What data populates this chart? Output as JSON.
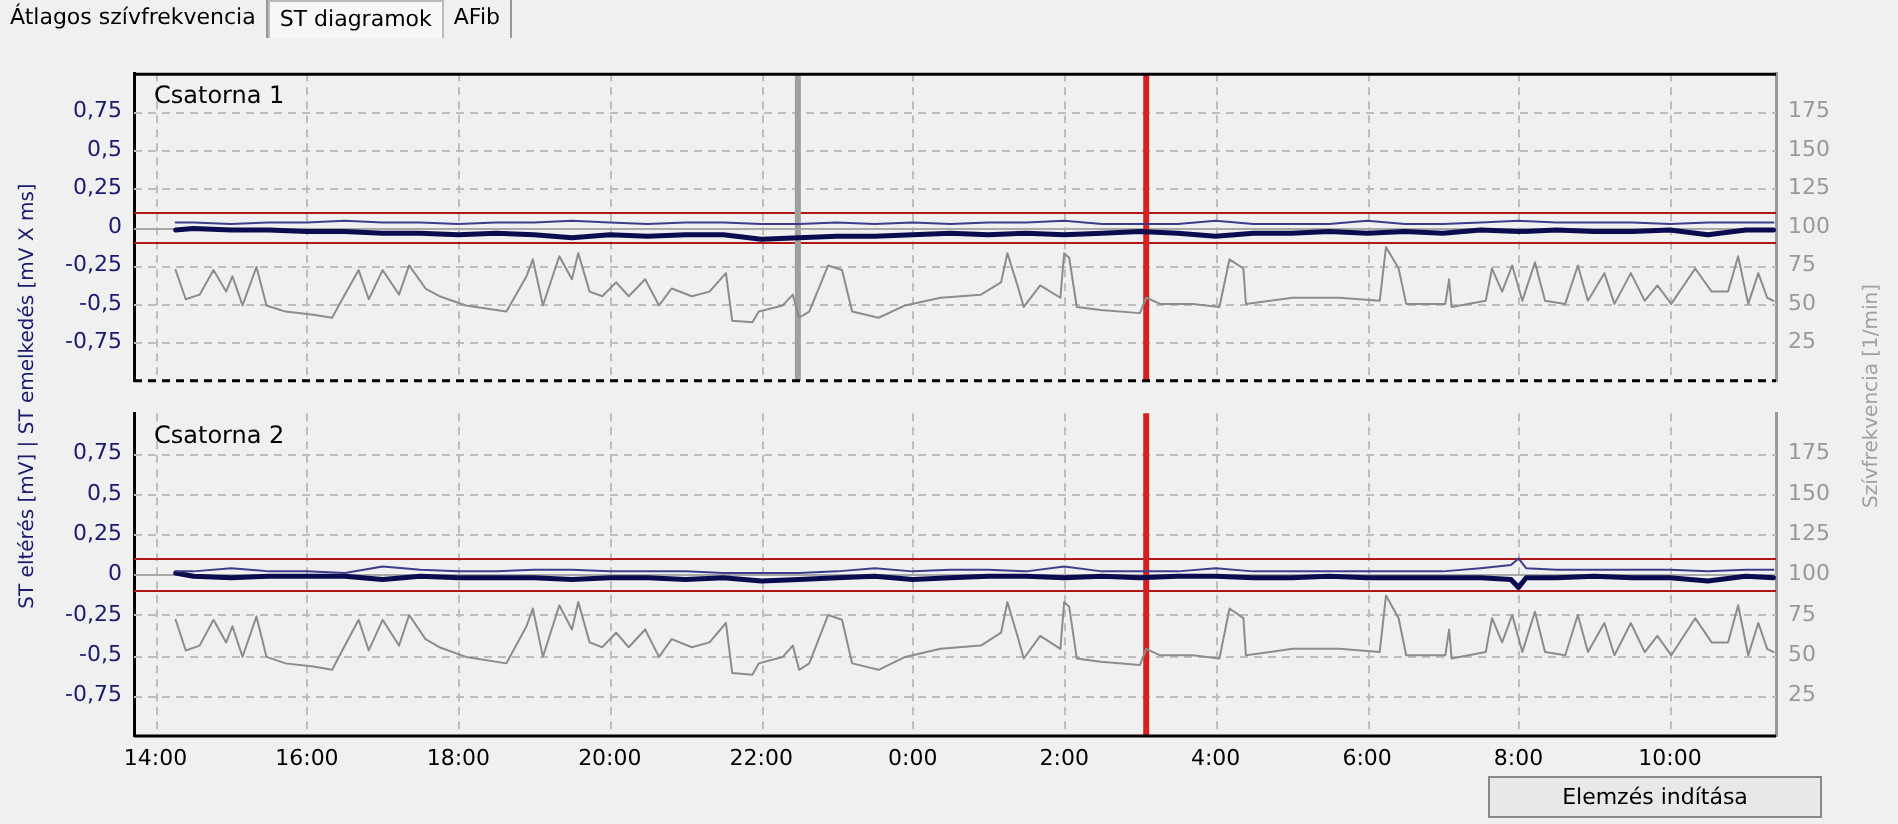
{
  "chart_data": [
    {
      "type": "line",
      "title": "Csatorna 1",
      "ylabel": "ST eltérés [mV] | ST emelkedés [mV X ms]",
      "y2label": "Szívfrekvencia [1/min]",
      "annotations": [
        "Átlagos szívfrekvencia",
        "ST diagramok",
        "AFib"
      ],
      "xlim": [
        "2000-01-01T13:43",
        "2000-01-02T11:24"
      ],
      "xticks": [
        {
          "value": "2000-01-01T14:00",
          "label": null
        },
        {
          "value": "2000-01-01T16:00",
          "label": null
        },
        {
          "value": "2000-01-01T18:00",
          "label": null
        },
        {
          "value": "2000-01-01T20:00",
          "label": null
        },
        {
          "value": "2000-01-01T22:00",
          "label": null
        },
        {
          "value": "2000-01-02T00:00",
          "label": null
        },
        {
          "value": "2000-01-02T02:00",
          "label": null
        },
        {
          "value": "2000-01-02T04:00",
          "label": null
        },
        {
          "value": "2000-01-02T06:00",
          "label": null
        },
        {
          "value": "2000-01-02T08:00",
          "label": null
        },
        {
          "value": "2000-01-02T10:00",
          "label": null
        }
      ],
      "ylim": [
        -1,
        1
      ],
      "yticks": [
        {
          "value": -0.75,
          "label": "-0,75"
        },
        {
          "value": -0.5,
          "label": "-0,5"
        },
        {
          "value": -0.25,
          "label": "-0,25"
        },
        0,
        {
          "value": 0.25,
          "label": "0,25"
        },
        {
          "value": 0.5,
          "label": "0,5"
        },
        {
          "value": 0.75,
          "label": "0,75"
        }
      ],
      "y2lim": [
        0,
        200
      ],
      "y2ticks": [
        25,
        50,
        75,
        100,
        125,
        150,
        175
      ],
      "grid": true,
      "legend": false,
      "tick_labels": "y",
      "marker": "none",
      "line_style": "solid",
      "ref_lines": [
        {
          "axis": "y",
          "value": 0,
          "color": "#a8a8a8"
        },
        {
          "axis": "y",
          "value": 0.1,
          "color": "#b01818"
        },
        {
          "axis": "y",
          "value": -0.1,
          "color": "#b01818"
        },
        {
          "axis": "x",
          "value": "2000-01-02T03:05",
          "color": "#d42020"
        },
        {
          "axis": "x",
          "value": "2000-01-01T22:29",
          "color": "#a0a0a0"
        }
      ],
      "series": [
        {
          "color": "#0b0b4f",
          "x": [
            "2000-01-01T14:16",
            "2000-01-01T14:30",
            "2000-01-01T15:00",
            "2000-01-01T15:30",
            "2000-01-01T16:00",
            "2000-01-01T16:30",
            "2000-01-01T17:00",
            "2000-01-01T17:30",
            "2000-01-01T18:00",
            "2000-01-01T18:30",
            "2000-01-01T19:00",
            "2000-01-01T19:30",
            "2000-01-01T20:00",
            "2000-01-01T20:30",
            "2000-01-01T21:00",
            "2000-01-01T21:30",
            "2000-01-01T22:00",
            "2000-01-01T22:30",
            "2000-01-01T23:00",
            "2000-01-01T23:30",
            "2000-01-02T00:00",
            "2000-01-02T00:30",
            "2000-01-02T01:00",
            "2000-01-02T01:30",
            "2000-01-02T02:00",
            "2000-01-02T02:30",
            "2000-01-02T03:00",
            "2000-01-02T03:30",
            "2000-01-02T04:00",
            "2000-01-02T04:30",
            "2000-01-02T05:00",
            "2000-01-02T05:30",
            "2000-01-02T06:00",
            "2000-01-02T06:30",
            "2000-01-02T07:00",
            "2000-01-02T07:30",
            "2000-01-02T08:00",
            "2000-01-02T08:30",
            "2000-01-02T09:00",
            "2000-01-02T09:30",
            "2000-01-02T10:00",
            "2000-01-02T10:30",
            "2000-01-02T11:00",
            "2000-01-02T11:22"
          ],
          "values": [
            -0.02,
            -0.01,
            -0.02,
            -0.02,
            -0.03,
            -0.03,
            -0.04,
            -0.04,
            -0.05,
            -0.04,
            -0.05,
            -0.07,
            -0.05,
            -0.06,
            -0.05,
            -0.05,
            -0.08,
            -0.07,
            -0.06,
            -0.06,
            -0.05,
            -0.04,
            -0.05,
            -0.04,
            -0.05,
            -0.04,
            -0.03,
            -0.04,
            -0.06,
            -0.04,
            -0.04,
            -0.03,
            -0.04,
            -0.03,
            -0.04,
            -0.02,
            -0.03,
            -0.02,
            -0.03,
            -0.03,
            -0.02,
            -0.05,
            -0.02,
            -0.02
          ]
        },
        {
          "color": "#3c3c8c",
          "x": [
            "2000-01-01T14:16",
            "2000-01-01T14:30",
            "2000-01-01T15:00",
            "2000-01-01T15:30",
            "2000-01-01T16:00",
            "2000-01-01T16:30",
            "2000-01-01T17:00",
            "2000-01-01T17:30",
            "2000-01-01T18:00",
            "2000-01-01T18:30",
            "2000-01-01T19:00",
            "2000-01-01T19:30",
            "2000-01-01T20:00",
            "2000-01-01T20:30",
            "2000-01-01T21:00",
            "2000-01-01T21:30",
            "2000-01-01T22:00",
            "2000-01-01T22:30",
            "2000-01-01T23:00",
            "2000-01-01T23:30",
            "2000-01-02T00:00",
            "2000-01-02T00:30",
            "2000-01-02T01:00",
            "2000-01-02T01:30",
            "2000-01-02T02:00",
            "2000-01-02T02:30",
            "2000-01-02T03:00",
            "2000-01-02T03:30",
            "2000-01-02T04:00",
            "2000-01-02T04:30",
            "2000-01-02T05:00",
            "2000-01-02T05:30",
            "2000-01-02T06:00",
            "2000-01-02T06:30",
            "2000-01-02T07:00",
            "2000-01-02T07:30",
            "2000-01-02T08:00",
            "2000-01-02T08:30",
            "2000-01-02T09:00",
            "2000-01-02T09:30",
            "2000-01-02T10:00",
            "2000-01-02T10:30",
            "2000-01-02T11:00",
            "2000-01-02T11:22"
          ],
          "values": [
            0.03,
            0.03,
            0.02,
            0.03,
            0.03,
            0.04,
            0.03,
            0.03,
            0.02,
            0.03,
            0.03,
            0.04,
            0.03,
            0.02,
            0.03,
            0.03,
            0.02,
            0.02,
            0.03,
            0.02,
            0.03,
            0.02,
            0.03,
            0.03,
            0.04,
            0.02,
            0.02,
            0.02,
            0.04,
            0.02,
            0.02,
            0.02,
            0.04,
            0.02,
            0.02,
            0.03,
            0.04,
            0.03,
            0.03,
            0.03,
            0.02,
            0.03,
            0.03,
            0.03
          ]
        },
        {
          "axis": "y2",
          "color": "#8c8c8c",
          "x": [
            "2000-01-01T14:16",
            "2000-01-01T14:24",
            "2000-01-01T14:35",
            "2000-01-01T14:46",
            "2000-01-01T14:56",
            "2000-01-01T15:01",
            "2000-01-01T15:09",
            "2000-01-01T15:20",
            "2000-01-01T15:28",
            "2000-01-01T15:43",
            "2000-01-01T16:05",
            "2000-01-01T16:20",
            "2000-01-01T16:28",
            "2000-01-01T16:41",
            "2000-01-01T16:49",
            "2000-01-01T17:00",
            "2000-01-01T17:13",
            "2000-01-01T17:21",
            "2000-01-01T17:34",
            "2000-01-01T17:45",
            "2000-01-01T18:06",
            "2000-01-01T18:38",
            "2000-01-01T18:54",
            "2000-01-01T18:59",
            "2000-01-01T19:07",
            "2000-01-01T19:20",
            "2000-01-01T19:30",
            "2000-01-01T19:35",
            "2000-01-01T19:44",
            "2000-01-01T19:54",
            "2000-01-01T20:05",
            "2000-01-01T20:15",
            "2000-01-01T20:28",
            "2000-01-01T20:39",
            "2000-01-01T20:49",
            "2000-01-01T21:05",
            "2000-01-01T21:19",
            "2000-01-01T21:32",
            "2000-01-01T21:37",
            "2000-01-01T21:53",
            "2000-01-01T21:58",
            "2000-01-01T22:17",
            "2000-01-01T22:25",
            "2000-01-01T22:30",
            "2000-01-01T22:38",
            "2000-01-01T22:53",
            "2000-01-01T23:04",
            "2000-01-01T23:12",
            "2000-01-01T23:33",
            "2000-01-01T23:54",
            "2000-01-02T00:22",
            "2000-01-02T00:54",
            "2000-01-02T01:10",
            "2000-01-02T01:15",
            "2000-01-02T01:23",
            "2000-01-02T01:28",
            "2000-01-02T01:41",
            "2000-01-02T01:57",
            "2000-01-02T02:00",
            "2000-01-02T02:04",
            "2000-01-02T02:10",
            "2000-01-02T02:29",
            "2000-01-02T03:00",
            "2000-01-02T03:05",
            "2000-01-02T03:16",
            "2000-01-02T03:42",
            "2000-01-02T04:03",
            "2000-01-02T04:11",
            "2000-01-02T04:22",
            "2000-01-02T04:24",
            "2000-01-02T05:01",
            "2000-01-02T05:38",
            "2000-01-02T06:10",
            "2000-01-02T06:15",
            "2000-01-02T06:25",
            "2000-01-02T06:31",
            "2000-01-02T07:02",
            "2000-01-02T07:05",
            "2000-01-02T07:07",
            "2000-01-02T07:34",
            "2000-01-02T07:39",
            "2000-01-02T07:47",
            "2000-01-02T07:55",
            "2000-01-02T08:03",
            "2000-01-02T08:13",
            "2000-01-02T08:21",
            "2000-01-02T08:37",
            "2000-01-02T08:47",
            "2000-01-02T08:55",
            "2000-01-02T09:08",
            "2000-01-02T09:16",
            "2000-01-02T09:29",
            "2000-01-02T09:40",
            "2000-01-02T09:50",
            "2000-01-02T10:01",
            "2000-01-02T10:20",
            "2000-01-02T10:33",
            "2000-01-02T10:46",
            "2000-01-02T10:54",
            "2000-01-02T11:02",
            "2000-01-02T11:10",
            "2000-01-02T11:17",
            "2000-01-02T11:22"
          ],
          "values": [
            72,
            53,
            56,
            72,
            58,
            68,
            49,
            74,
            49,
            45,
            43,
            41,
            53,
            72,
            53,
            72,
            56,
            75,
            60,
            55,
            49,
            45,
            68,
            79,
            49,
            81,
            66,
            83,
            58,
            55,
            64,
            55,
            66,
            49,
            60,
            55,
            58,
            70,
            39,
            38,
            45,
            49,
            56,
            41,
            45,
            75,
            72,
            45,
            41,
            49,
            54,
            56,
            64,
            83,
            62,
            48,
            62,
            54,
            83,
            80,
            48,
            46,
            44,
            54,
            50,
            50,
            48,
            79,
            73,
            50,
            54,
            54,
            52,
            87,
            73,
            50,
            50,
            66,
            48,
            52,
            73,
            58,
            75,
            52,
            77,
            52,
            50,
            75,
            52,
            70,
            50,
            70,
            52,
            62,
            50,
            73,
            58,
            58,
            81,
            50,
            70,
            54,
            52
          ]
        }
      ]
    },
    {
      "type": "line",
      "title": "Csatorna 2",
      "annotations": [
        "Elemzés indítása"
      ],
      "xlim": [
        "2000-01-01T13:43",
        "2000-01-02T11:24"
      ],
      "xticks": [
        {
          "value": "2000-01-01T14:00",
          "label": "14:00"
        },
        {
          "value": "2000-01-01T16:00",
          "label": "16:00"
        },
        {
          "value": "2000-01-01T18:00",
          "label": "18:00"
        },
        {
          "value": "2000-01-01T20:00",
          "label": "20:00"
        },
        {
          "value": "2000-01-01T22:00",
          "label": "22:00"
        },
        {
          "value": "2000-01-02T00:00",
          "label": "0:00"
        },
        {
          "value": "2000-01-02T02:00",
          "label": "2:00"
        },
        {
          "value": "2000-01-02T04:00",
          "label": "4:00"
        },
        {
          "value": "2000-01-02T06:00",
          "label": "6:00"
        },
        {
          "value": "2000-01-02T08:00",
          "label": "8:00"
        },
        {
          "value": "2000-01-02T10:00",
          "label": "10:00"
        }
      ],
      "ylim": [
        -1,
        1
      ],
      "yticks": [
        {
          "value": -0.75,
          "label": "-0,75"
        },
        {
          "value": -0.5,
          "label": "-0,5"
        },
        {
          "value": -0.25,
          "label": "-0,25"
        },
        0,
        {
          "value": 0.25,
          "label": "0,25"
        },
        {
          "value": 0.5,
          "label": "0,5"
        },
        {
          "value": 0.75,
          "label": "0,75"
        }
      ],
      "y2lim": [
        0,
        200
      ],
      "y2ticks": [
        25,
        50,
        75,
        100,
        125,
        150,
        175
      ],
      "grid": true,
      "legend": false,
      "marker": "none",
      "line_style": "solid",
      "ref_lines": [
        {
          "axis": "y",
          "value": 0,
          "color": "#a8a8a8"
        },
        {
          "axis": "y",
          "value": 0.1,
          "color": "#b01818"
        },
        {
          "axis": "y",
          "value": -0.1,
          "color": "#b01818"
        },
        {
          "axis": "x",
          "value": "2000-01-02T03:05",
          "color": "#d42020"
        }
      ],
      "series": [
        {
          "color": "#0b0b4f",
          "x": [
            "2000-01-01T14:16",
            "2000-01-01T14:30",
            "2000-01-01T15:00",
            "2000-01-01T15:30",
            "2000-01-01T16:00",
            "2000-01-01T16:30",
            "2000-01-01T17:00",
            "2000-01-01T17:30",
            "2000-01-01T18:00",
            "2000-01-01T18:30",
            "2000-01-01T19:00",
            "2000-01-01T19:30",
            "2000-01-01T20:00",
            "2000-01-01T20:30",
            "2000-01-01T21:00",
            "2000-01-01T21:30",
            "2000-01-01T22:00",
            "2000-01-01T22:30",
            "2000-01-01T23:00",
            "2000-01-01T23:30",
            "2000-01-02T00:00",
            "2000-01-02T00:30",
            "2000-01-02T01:00",
            "2000-01-02T01:30",
            "2000-01-02T02:00",
            "2000-01-02T02:30",
            "2000-01-02T03:00",
            "2000-01-02T03:30",
            "2000-01-02T04:00",
            "2000-01-02T04:30",
            "2000-01-02T05:00",
            "2000-01-02T05:30",
            "2000-01-02T06:00",
            "2000-01-02T06:30",
            "2000-01-02T07:00",
            "2000-01-02T07:30",
            "2000-01-02T07:54",
            "2000-01-02T08:00",
            "2000-01-02T08:06",
            "2000-01-02T08:30",
            "2000-01-02T09:00",
            "2000-01-02T09:30",
            "2000-01-02T10:00",
            "2000-01-02T10:30",
            "2000-01-02T11:00",
            "2000-01-02T11:22"
          ],
          "values": [
            0.01,
            -0.01,
            -0.02,
            -0.01,
            -0.01,
            -0.01,
            -0.03,
            -0.01,
            -0.02,
            -0.02,
            -0.02,
            -0.03,
            -0.02,
            -0.02,
            -0.03,
            -0.02,
            -0.04,
            -0.03,
            -0.02,
            -0.01,
            -0.03,
            -0.02,
            -0.01,
            -0.01,
            -0.02,
            -0.01,
            -0.02,
            -0.01,
            -0.01,
            -0.02,
            -0.02,
            -0.01,
            -0.02,
            -0.02,
            -0.02,
            -0.02,
            -0.03,
            -0.08,
            -0.02,
            -0.02,
            -0.01,
            -0.02,
            -0.02,
            -0.04,
            -0.01,
            -0.02
          ]
        },
        {
          "color": "#3c3c8c",
          "x": [
            "2000-01-01T14:16",
            "2000-01-01T14:30",
            "2000-01-01T15:00",
            "2000-01-01T15:30",
            "2000-01-01T16:00",
            "2000-01-01T16:30",
            "2000-01-01T17:00",
            "2000-01-01T17:30",
            "2000-01-01T18:00",
            "2000-01-01T18:30",
            "2000-01-01T19:00",
            "2000-01-01T19:30",
            "2000-01-01T20:00",
            "2000-01-01T20:30",
            "2000-01-01T21:00",
            "2000-01-01T21:30",
            "2000-01-01T22:00",
            "2000-01-01T22:30",
            "2000-01-01T23:00",
            "2000-01-01T23:30",
            "2000-01-02T00:00",
            "2000-01-02T00:30",
            "2000-01-02T01:00",
            "2000-01-02T01:30",
            "2000-01-02T02:00",
            "2000-01-02T02:30",
            "2000-01-02T03:00",
            "2000-01-02T03:30",
            "2000-01-02T04:00",
            "2000-01-02T04:30",
            "2000-01-02T05:00",
            "2000-01-02T05:30",
            "2000-01-02T06:00",
            "2000-01-02T06:30",
            "2000-01-02T07:00",
            "2000-01-02T07:30",
            "2000-01-02T07:54",
            "2000-01-02T08:00",
            "2000-01-02T08:06",
            "2000-01-02T08:30",
            "2000-01-02T09:00",
            "2000-01-02T09:30",
            "2000-01-02T10:00",
            "2000-01-02T10:30",
            "2000-01-02T11:00",
            "2000-01-02T11:22"
          ],
          "values": [
            0.02,
            0.02,
            0.04,
            0.02,
            0.02,
            0.01,
            0.05,
            0.03,
            0.02,
            0.02,
            0.03,
            0.03,
            0.02,
            0.02,
            0.02,
            0.01,
            0.01,
            0.01,
            0.02,
            0.04,
            0.02,
            0.03,
            0.03,
            0.02,
            0.05,
            0.02,
            0.02,
            0.02,
            0.04,
            0.02,
            0.02,
            0.02,
            0.02,
            0.02,
            0.02,
            0.04,
            0.06,
            0.1,
            0.04,
            0.03,
            0.03,
            0.03,
            0.03,
            0.02,
            0.03,
            0.03
          ]
        },
        {
          "axis": "y2",
          "color": "#8c8c8c",
          "x": [
            "2000-01-01T14:16",
            "2000-01-01T14:24",
            "2000-01-01T14:35",
            "2000-01-01T14:46",
            "2000-01-01T14:56",
            "2000-01-01T15:01",
            "2000-01-01T15:09",
            "2000-01-01T15:20",
            "2000-01-01T15:28",
            "2000-01-01T15:43",
            "2000-01-01T16:05",
            "2000-01-01T16:20",
            "2000-01-01T16:28",
            "2000-01-01T16:41",
            "2000-01-01T16:49",
            "2000-01-01T17:00",
            "2000-01-01T17:13",
            "2000-01-01T17:21",
            "2000-01-01T17:34",
            "2000-01-01T17:45",
            "2000-01-01T18:06",
            "2000-01-01T18:38",
            "2000-01-01T18:54",
            "2000-01-01T18:59",
            "2000-01-01T19:07",
            "2000-01-01T19:20",
            "2000-01-01T19:30",
            "2000-01-01T19:35",
            "2000-01-01T19:44",
            "2000-01-01T19:54",
            "2000-01-01T20:05",
            "2000-01-01T20:15",
            "2000-01-01T20:28",
            "2000-01-01T20:39",
            "2000-01-01T20:49",
            "2000-01-01T21:05",
            "2000-01-01T21:19",
            "2000-01-01T21:32",
            "2000-01-01T21:37",
            "2000-01-01T21:53",
            "2000-01-01T21:58",
            "2000-01-01T22:17",
            "2000-01-01T22:25",
            "2000-01-01T22:30",
            "2000-01-01T22:38",
            "2000-01-01T22:53",
            "2000-01-01T23:04",
            "2000-01-01T23:12",
            "2000-01-01T23:33",
            "2000-01-01T23:54",
            "2000-01-02T00:22",
            "2000-01-02T00:54",
            "2000-01-02T01:10",
            "2000-01-02T01:15",
            "2000-01-02T01:23",
            "2000-01-02T01:28",
            "2000-01-02T01:41",
            "2000-01-02T01:57",
            "2000-01-02T02:00",
            "2000-01-02T02:04",
            "2000-01-02T02:10",
            "2000-01-02T02:29",
            "2000-01-02T03:00",
            "2000-01-02T03:05",
            "2000-01-02T03:16",
            "2000-01-02T03:42",
            "2000-01-02T04:03",
            "2000-01-02T04:11",
            "2000-01-02T04:22",
            "2000-01-02T04:24",
            "2000-01-02T05:01",
            "2000-01-02T05:38",
            "2000-01-02T06:10",
            "2000-01-02T06:15",
            "2000-01-02T06:25",
            "2000-01-02T06:31",
            "2000-01-02T07:02",
            "2000-01-02T07:05",
            "2000-01-02T07:07",
            "2000-01-02T07:34",
            "2000-01-02T07:39",
            "2000-01-02T07:47",
            "2000-01-02T07:55",
            "2000-01-02T08:03",
            "2000-01-02T08:13",
            "2000-01-02T08:21",
            "2000-01-02T08:37",
            "2000-01-02T08:47",
            "2000-01-02T08:55",
            "2000-01-02T09:08",
            "2000-01-02T09:16",
            "2000-01-02T09:29",
            "2000-01-02T09:40",
            "2000-01-02T09:50",
            "2000-01-02T10:01",
            "2000-01-02T10:20",
            "2000-01-02T10:33",
            "2000-01-02T10:46",
            "2000-01-02T10:54",
            "2000-01-02T11:02",
            "2000-01-02T11:10",
            "2000-01-02T11:17",
            "2000-01-02T11:22"
          ],
          "values": [
            72,
            53,
            56,
            72,
            58,
            68,
            49,
            74,
            49,
            45,
            43,
            41,
            53,
            72,
            53,
            72,
            56,
            75,
            60,
            55,
            49,
            45,
            68,
            79,
            49,
            81,
            66,
            83,
            58,
            55,
            64,
            55,
            66,
            49,
            60,
            55,
            58,
            70,
            39,
            38,
            45,
            49,
            56,
            41,
            45,
            75,
            72,
            45,
            41,
            49,
            54,
            56,
            64,
            83,
            62,
            48,
            62,
            54,
            83,
            80,
            48,
            46,
            44,
            54,
            50,
            50,
            48,
            79,
            73,
            50,
            54,
            54,
            52,
            87,
            73,
            50,
            50,
            66,
            48,
            52,
            73,
            58,
            75,
            52,
            77,
            52,
            50,
            75,
            52,
            70,
            50,
            70,
            52,
            62,
            50,
            73,
            58,
            58,
            81,
            50,
            70,
            54,
            52
          ]
        }
      ]
    }
  ]
}
